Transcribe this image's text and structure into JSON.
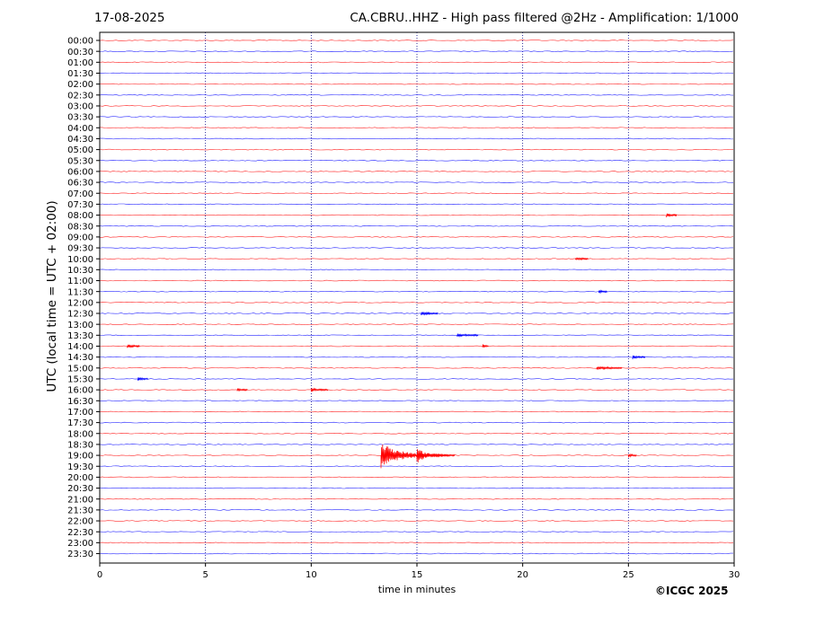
{
  "header": {
    "date": "17-08-2025",
    "title": "CA.CBRU..HHZ - High pass filtered @2Hz - Amplification: 1/1000"
  },
  "footer": {
    "copyright": "©ICGC 2025"
  },
  "chart_data": {
    "type": "line",
    "title": "CA.CBRU..HHZ - High pass filtered @2Hz - Amplification: 1/1000",
    "xlabel": "time in minutes",
    "ylabel": "UTC (local time = UTC + 02:00)",
    "xlim": [
      0,
      30
    ],
    "x_ticks": [
      0,
      5,
      10,
      15,
      20,
      25,
      30
    ],
    "x_tick_labels": [
      "0",
      "5",
      "10",
      "15",
      "20",
      "25",
      "30"
    ],
    "grid": "vertical dotted",
    "trace_colors": [
      "#ff0000",
      "#0000ff"
    ],
    "rows": [
      "00:00",
      "00:30",
      "01:00",
      "01:30",
      "02:00",
      "02:30",
      "03:00",
      "03:30",
      "04:00",
      "04:30",
      "05:00",
      "05:30",
      "06:00",
      "06:30",
      "07:00",
      "07:30",
      "08:00",
      "08:30",
      "09:00",
      "09:30",
      "10:00",
      "10:30",
      "11:00",
      "11:30",
      "12:00",
      "12:30",
      "13:00",
      "13:30",
      "14:00",
      "14:30",
      "15:00",
      "15:30",
      "16:00",
      "16:30",
      "17:00",
      "17:30",
      "18:00",
      "18:30",
      "19:00",
      "19:30",
      "20:00",
      "20:30",
      "21:00",
      "21:30",
      "22:00",
      "22:30",
      "23:00",
      "23:30"
    ],
    "events": [
      {
        "row": "19:00",
        "minute": 13.3,
        "amplitude": 1.0,
        "duration": 3.5
      },
      {
        "row": "19:00",
        "minute": 15.0,
        "amplitude": 0.6,
        "duration": 1.5
      },
      {
        "row": "19:00",
        "minute": 25.0,
        "amplitude": 0.15,
        "duration": 0.4
      },
      {
        "row": "08:00",
        "minute": 26.8,
        "amplitude": 0.15,
        "duration": 0.5
      },
      {
        "row": "14:00",
        "minute": 18.1,
        "amplitude": 0.15,
        "duration": 0.3
      },
      {
        "row": "14:00",
        "minute": 1.3,
        "amplitude": 0.12,
        "duration": 0.6
      },
      {
        "row": "14:30",
        "minute": 25.2,
        "amplitude": 0.12,
        "duration": 0.6
      },
      {
        "row": "15:00",
        "minute": 23.5,
        "amplitude": 0.1,
        "duration": 1.2
      },
      {
        "row": "15:30",
        "minute": 1.8,
        "amplitude": 0.12,
        "duration": 0.5
      },
      {
        "row": "16:00",
        "minute": 10.0,
        "amplitude": 0.1,
        "duration": 0.8
      },
      {
        "row": "16:00",
        "minute": 6.5,
        "amplitude": 0.08,
        "duration": 0.5
      },
      {
        "row": "12:30",
        "minute": 15.2,
        "amplitude": 0.1,
        "duration": 0.8
      },
      {
        "row": "13:30",
        "minute": 16.9,
        "amplitude": 0.08,
        "duration": 1.0
      },
      {
        "row": "11:30",
        "minute": 23.6,
        "amplitude": 0.08,
        "duration": 0.4
      },
      {
        "row": "10:00",
        "minute": 22.5,
        "amplitude": 0.08,
        "duration": 0.6
      }
    ]
  }
}
